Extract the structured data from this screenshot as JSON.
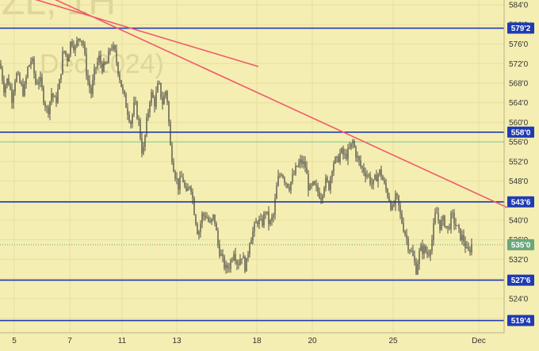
{
  "chart_data": {
    "type": "candlestick",
    "title": "",
    "xlabel": "",
    "ylabel": "",
    "ylim": [
      517,
      585
    ],
    "x_ticks": [
      "5",
      "7",
      "11",
      "13",
      "18",
      "20",
      "25",
      "Dec"
    ],
    "y_ticks": [
      "584'0",
      "580'0",
      "576'0",
      "572'0",
      "568'0",
      "564'0",
      "560'0",
      "556'0",
      "552'0",
      "548'0",
      "544'0",
      "540'0",
      "536'0",
      "532'0",
      "528'0",
      "524'0",
      "520'0"
    ],
    "horizontal_levels": [
      {
        "label": "579'2",
        "value": 579.25,
        "color": "#1f3bb3"
      },
      {
        "label": "558'0",
        "value": 558.0,
        "color": "#1f3bb3"
      },
      {
        "label": "543'6",
        "value": 543.75,
        "color": "#1f3bb3"
      },
      {
        "label": "527'6",
        "value": 527.75,
        "color": "#1f3bb3"
      },
      {
        "label": "519'4",
        "value": 519.5,
        "color": "#1f3bb3"
      }
    ],
    "green_level": {
      "value": 556.0,
      "color": "#7fc98a"
    },
    "current_price": {
      "label": "535'0",
      "value": 535.0,
      "color": "#6aa77a"
    },
    "watermark": {
      "top": "ZL, 1H",
      "sub": "Dec 2024)"
    },
    "grid": true,
    "price_path": [
      [
        0,
        572
      ],
      [
        5,
        567
      ],
      [
        10,
        569
      ],
      [
        15,
        565
      ],
      [
        20,
        570
      ],
      [
        25,
        568
      ],
      [
        30,
        566
      ],
      [
        35,
        571
      ],
      [
        40,
        573
      ],
      [
        45,
        568
      ],
      [
        50,
        569
      ],
      [
        55,
        565
      ],
      [
        60,
        562
      ],
      [
        65,
        566
      ],
      [
        70,
        564
      ],
      [
        75,
        568
      ],
      [
        80,
        575
      ],
      [
        85,
        573
      ],
      [
        90,
        577
      ],
      [
        95,
        575
      ],
      [
        100,
        578
      ],
      [
        105,
        576
      ],
      [
        110,
        569
      ],
      [
        115,
        566
      ],
      [
        120,
        571
      ],
      [
        125,
        573
      ],
      [
        130,
        571
      ],
      [
        135,
        572
      ],
      [
        140,
        576
      ],
      [
        145,
        574
      ],
      [
        150,
        570
      ],
      [
        155,
        566
      ],
      [
        160,
        563
      ],
      [
        165,
        560
      ],
      [
        170,
        564
      ],
      [
        175,
        560
      ],
      [
        180,
        553
      ],
      [
        185,
        560
      ],
      [
        190,
        566
      ],
      [
        195,
        564
      ],
      [
        200,
        568
      ],
      [
        205,
        564
      ],
      [
        210,
        567
      ],
      [
        215,
        555
      ],
      [
        220,
        550
      ],
      [
        225,
        547
      ],
      [
        230,
        549
      ],
      [
        235,
        545
      ],
      [
        240,
        548
      ],
      [
        245,
        542
      ],
      [
        250,
        537
      ],
      [
        255,
        541
      ],
      [
        260,
        541
      ],
      [
        265,
        539
      ],
      [
        270,
        541
      ],
      [
        275,
        535
      ],
      [
        280,
        532
      ],
      [
        285,
        530
      ],
      [
        290,
        531
      ],
      [
        295,
        534
      ],
      [
        300,
        531
      ],
      [
        305,
        533
      ],
      [
        310,
        530
      ],
      [
        315,
        536
      ],
      [
        320,
        538
      ],
      [
        325,
        540
      ],
      [
        330,
        539
      ],
      [
        335,
        542
      ],
      [
        340,
        539
      ],
      [
        345,
        541
      ],
      [
        350,
        548
      ],
      [
        355,
        550
      ],
      [
        360,
        548
      ],
      [
        365,
        547
      ],
      [
        370,
        549
      ],
      [
        375,
        551
      ],
      [
        380,
        552
      ],
      [
        385,
        551
      ],
      [
        390,
        546
      ],
      [
        395,
        547
      ],
      [
        400,
        546
      ],
      [
        405,
        545
      ],
      [
        410,
        548
      ],
      [
        415,
        547
      ],
      [
        420,
        552
      ],
      [
        425,
        552
      ],
      [
        430,
        554
      ],
      [
        435,
        553
      ],
      [
        440,
        554
      ],
      [
        445,
        556
      ],
      [
        450,
        553
      ],
      [
        455,
        551
      ],
      [
        460,
        550
      ],
      [
        465,
        549
      ],
      [
        470,
        547
      ],
      [
        475,
        549
      ],
      [
        480,
        550
      ],
      [
        485,
        547
      ],
      [
        490,
        545
      ],
      [
        495,
        542
      ],
      [
        500,
        545
      ],
      [
        505,
        541
      ],
      [
        510,
        538
      ],
      [
        515,
        535
      ],
      [
        520,
        533
      ],
      [
        525,
        530
      ],
      [
        530,
        534
      ],
      [
        535,
        534
      ],
      [
        540,
        533
      ],
      [
        545,
        536
      ],
      [
        550,
        542
      ],
      [
        555,
        539
      ],
      [
        560,
        540
      ],
      [
        565,
        538
      ],
      [
        570,
        541
      ],
      [
        575,
        539
      ],
      [
        580,
        537
      ],
      [
        585,
        536
      ],
      [
        590,
        533
      ],
      [
        595,
        535
      ]
    ]
  }
}
